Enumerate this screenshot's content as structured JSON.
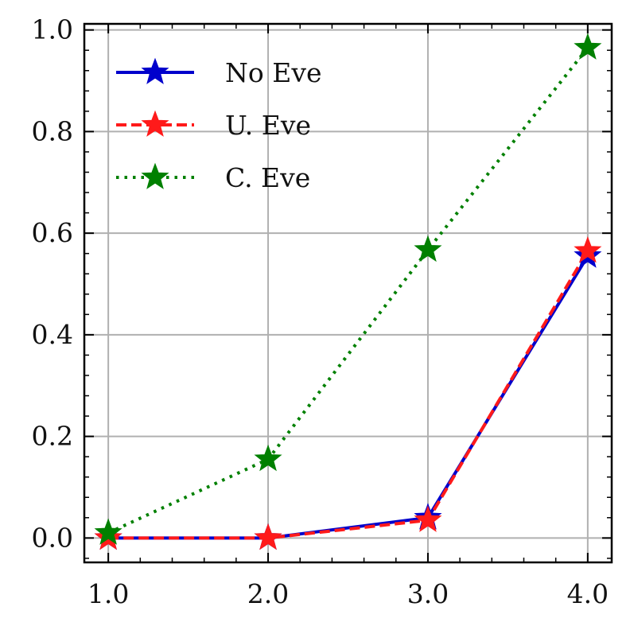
{
  "chart_data": {
    "type": "line",
    "title": "",
    "xlabel": "",
    "ylabel": "",
    "x": [
      1.0,
      2.0,
      3.0,
      4.0
    ],
    "xticks": [
      1.0,
      2.0,
      3.0,
      4.0
    ],
    "xtick_labels": [
      "1.0",
      "2.0",
      "3.0",
      "4.0"
    ],
    "yticks": [
      0.0,
      0.2,
      0.4,
      0.6,
      0.8,
      1.0
    ],
    "ytick_labels": [
      "0.0",
      "0.2",
      "0.4",
      "0.6",
      "0.8",
      "1.0"
    ],
    "xlim": [
      0.85,
      4.15
    ],
    "ylim": [
      -0.048,
      1.012
    ],
    "grid": true,
    "legend_position": "top-left",
    "series": [
      {
        "name": "No Eve",
        "values": [
          0.0,
          0.0,
          0.04,
          0.555
        ],
        "color": "#0000cc",
        "line_style": "solid",
        "marker": "star"
      },
      {
        "name": "U. Eve",
        "values": [
          0.0,
          0.0,
          0.035,
          0.565
        ],
        "color": "#ff1a1a",
        "line_style": "dashed",
        "marker": "star"
      },
      {
        "name": "C. Eve",
        "values": [
          0.01,
          0.155,
          0.567,
          0.965
        ],
        "color": "#008000",
        "line_style": "dotted",
        "marker": "star"
      }
    ]
  }
}
